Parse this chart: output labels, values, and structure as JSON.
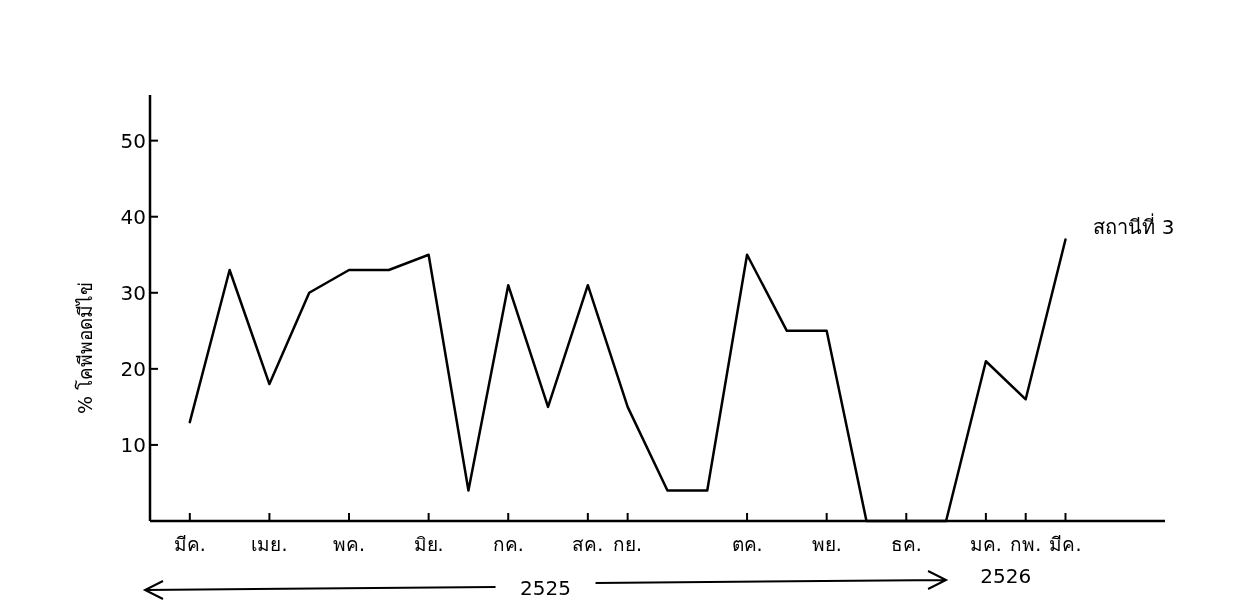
{
  "chart_data": {
    "type": "line",
    "ylabel": "% โคพีพอดมีไข่",
    "categories": [
      "มีค.",
      null,
      "เมย.",
      null,
      "พค.",
      null,
      "มิย.",
      null,
      "กค.",
      null,
      "สค.",
      "กย.",
      null,
      null,
      "ตค.",
      null,
      "พย.",
      null,
      "ธค.",
      null,
      "มค.",
      "กพ.",
      "มีค."
    ],
    "series": [
      {
        "name": "สถานีที่ 3",
        "color": "#000000",
        "values": [
          13,
          33,
          18,
          30,
          33,
          33,
          35,
          4,
          31,
          15,
          31,
          15,
          4,
          4,
          35,
          25,
          25,
          0,
          0,
          0,
          21,
          16,
          37
        ]
      }
    ],
    "ylim": [
      0,
      56
    ],
    "yticks": [
      10,
      20,
      30,
      40,
      50
    ],
    "annotations": [
      "2525",
      "2526"
    ]
  }
}
